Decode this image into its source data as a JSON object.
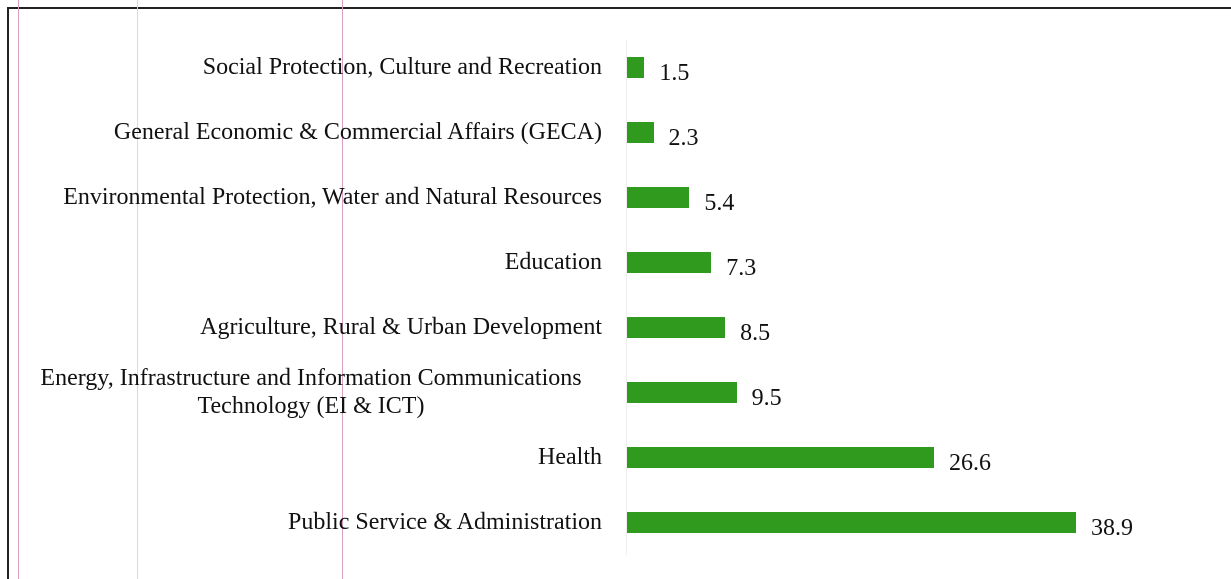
{
  "chart_data": {
    "type": "bar",
    "orientation": "horizontal",
    "color": "#2f9a1e",
    "categories": [
      "Social Protection, Culture and Recreation",
      "General Economic & Commercial Affairs (GECA)",
      "Environmental Protection, Water and Natural Resources",
      "Education",
      "Agriculture, Rural & Urban  Development",
      "Energy, Infrastructure and Information Communications Technology (EI & ICT)",
      "Health",
      "Public Service & Administration"
    ],
    "values": [
      1.5,
      2.3,
      5.4,
      7.3,
      8.5,
      9.5,
      26.6,
      38.9
    ]
  }
}
